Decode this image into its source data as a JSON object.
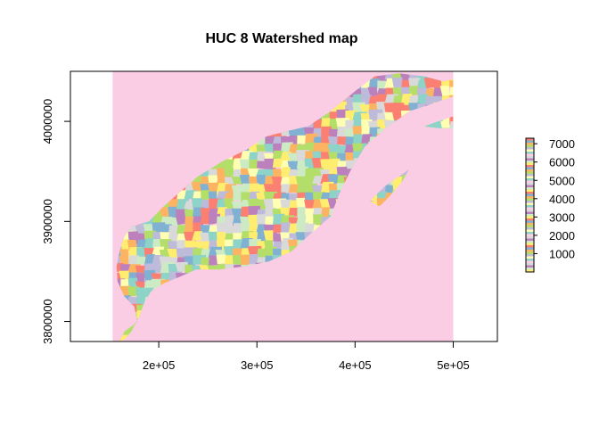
{
  "chart_data": {
    "type": "heatmap",
    "title": "HUC 8 Watershed map",
    "xlabel": "",
    "ylabel": "",
    "xlim": [
      110000,
      545000
    ],
    "ylim": [
      3780000,
      4050000
    ],
    "x_ticks": [
      {
        "value": 200000,
        "label": "2e+05"
      },
      {
        "value": 300000,
        "label": "3e+05"
      },
      {
        "value": 400000,
        "label": "4e+05"
      },
      {
        "value": 500000,
        "label": "5e+05"
      }
    ],
    "y_ticks": [
      {
        "value": 3800000,
        "label": "3800000"
      },
      {
        "value": 3900000,
        "label": "3900000"
      },
      {
        "value": 4000000,
        "label": "4000000"
      }
    ],
    "raster_extent": {
      "xmin": 153000,
      "xmax": 500000,
      "ymin": 3780000,
      "ymax": 4050000
    },
    "background_color": "#FBCDE4",
    "legend": {
      "position": "right",
      "range": [
        0,
        7300
      ],
      "ticks": [
        {
          "value": 1000,
          "label": "1000"
        },
        {
          "value": 2000,
          "label": "2000"
        },
        {
          "value": 3000,
          "label": "3000"
        },
        {
          "value": 4000,
          "label": "4000"
        },
        {
          "value": 5000,
          "label": "5000"
        },
        {
          "value": 6000,
          "label": "6000"
        },
        {
          "value": 7000,
          "label": "7000"
        }
      ]
    },
    "palette": [
      "#FB8072",
      "#80B1D3",
      "#FDB462",
      "#B3DE69",
      "#BEBADA",
      "#FFFFB3",
      "#8DD3C7",
      "#FCCDE5",
      "#D9D9D9",
      "#BC80BD",
      "#CCEBC5",
      "#FFED6F"
    ],
    "region_outline": [
      [
        160000,
        3780000
      ],
      [
        165000,
        3790000
      ],
      [
        172000,
        3795000
      ],
      [
        178000,
        3800000
      ],
      [
        175000,
        3815000
      ],
      [
        165000,
        3825000
      ],
      [
        158000,
        3840000
      ],
      [
        157000,
        3855000
      ],
      [
        160000,
        3870000
      ],
      [
        165000,
        3885000
      ],
      [
        172000,
        3895000
      ],
      [
        190000,
        3900000
      ],
      [
        205000,
        3915000
      ],
      [
        220000,
        3928000
      ],
      [
        240000,
        3945000
      ],
      [
        265000,
        3960000
      ],
      [
        290000,
        3972000
      ],
      [
        310000,
        3985000
      ],
      [
        330000,
        3990000
      ],
      [
        352000,
        3995000
      ],
      [
        375000,
        4010000
      ],
      [
        400000,
        4030000
      ],
      [
        420000,
        4045000
      ],
      [
        445000,
        4048000
      ],
      [
        470000,
        4045000
      ],
      [
        490000,
        4040000
      ],
      [
        500000,
        4042000
      ],
      [
        500000,
        4025000
      ],
      [
        480000,
        4018000
      ],
      [
        455000,
        4010000
      ],
      [
        430000,
        3992000
      ],
      [
        410000,
        3975000
      ],
      [
        395000,
        3950000
      ],
      [
        385000,
        3930000
      ],
      [
        375000,
        3905000
      ],
      [
        355000,
        3888000
      ],
      [
        335000,
        3870000
      ],
      [
        312000,
        3860000
      ],
      [
        288000,
        3855000
      ],
      [
        262000,
        3852000
      ],
      [
        238000,
        3852000
      ],
      [
        222000,
        3845000
      ],
      [
        205000,
        3838000
      ],
      [
        192000,
        3830000
      ],
      [
        185000,
        3818000
      ],
      [
        180000,
        3805000
      ],
      [
        172000,
        3790000
      ],
      [
        165000,
        3782000
      ]
    ],
    "region_secondary": [
      [
        415000,
        3920000
      ],
      [
        430000,
        3935000
      ],
      [
        445000,
        3945000
      ],
      [
        455000,
        3952000
      ],
      [
        448000,
        3940000
      ],
      [
        435000,
        3925000
      ],
      [
        425000,
        3915000
      ]
    ],
    "region_secondary_2": [
      [
        470000,
        3995000
      ],
      [
        485000,
        4000000
      ],
      [
        500000,
        4005000
      ],
      [
        500000,
        3993000
      ],
      [
        488000,
        3993000
      ]
    ]
  }
}
